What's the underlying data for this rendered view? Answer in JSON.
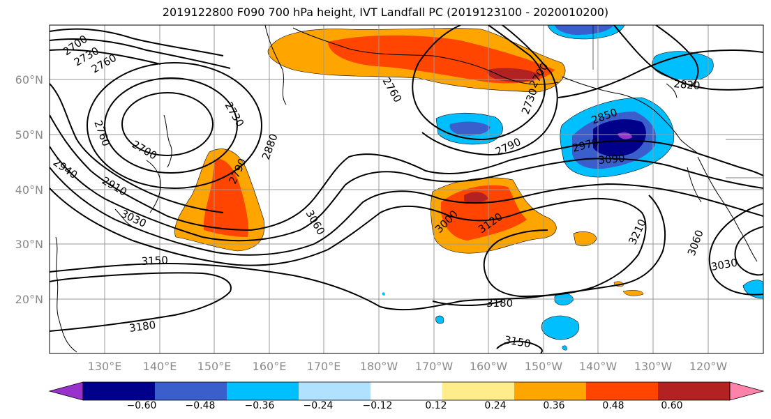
{
  "title": "2019122800 F090 700 hPa height, IVT Landfall PC (2019123100 - 2020010200)",
  "lat_labels": [
    "60°N",
    "50°N",
    "40°N",
    "30°N",
    "20°N"
  ],
  "lon_labels": [
    "130°E",
    "140°E",
    "150°E",
    "160°E",
    "170°E",
    "180°W",
    "170°W",
    "160°W",
    "150°W",
    "140°W",
    "130°W",
    "120°W"
  ],
  "colorbar": {
    "ticks": [
      "−0.60",
      "−0.48",
      "−0.36",
      "−0.24",
      "−0.12",
      "0.12",
      "0.24",
      "0.36",
      "0.48",
      "0.60"
    ],
    "colors": [
      "#9932cc",
      "#00008b",
      "#3a5fcd",
      "#00bfff",
      "#b0e2ff",
      "#ffffff",
      "#ffec8b",
      "#ffa500",
      "#ff4500",
      "#b22222",
      "#ff82ab"
    ]
  },
  "contour_labels": [
    "2700",
    "2730",
    "2760",
    "2730",
    "2760",
    "2700",
    "2940",
    "2910",
    "3030",
    "2880",
    "2790",
    "3060",
    "3150",
    "3180",
    "2760",
    "2790",
    "2730",
    "2700",
    "3000",
    "3120",
    "3180",
    "3150",
    "2850",
    "2970",
    "2820",
    "3090",
    "3210",
    "3060",
    "3030"
  ]
}
